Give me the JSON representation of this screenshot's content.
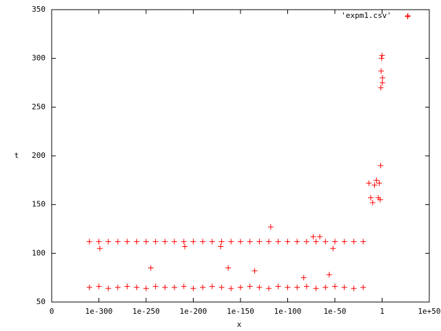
{
  "chart_data": {
    "type": "scatter",
    "xlabel": "x",
    "ylabel": "t",
    "xscale": "log",
    "xlim": [
      0,
      1e+50
    ],
    "xticks": [
      {
        "value": 0,
        "label": "0"
      },
      {
        "value": 1e-300,
        "label": "1e-300"
      },
      {
        "value": 1e-250,
        "label": "1e-250"
      },
      {
        "value": 1e-200,
        "label": "1e-200"
      },
      {
        "value": 1e-150,
        "label": "1e-150"
      },
      {
        "value": 1e-100,
        "label": "1e-100"
      },
      {
        "value": 1e-50,
        "label": "1e-50"
      },
      1,
      {
        "value": 1e+50,
        "label": "1e+50"
      }
    ],
    "ylim": [
      50,
      350
    ],
    "yticks": [
      50,
      100,
      150,
      200,
      250,
      300,
      350
    ],
    "legend_position": "top-right",
    "series": [
      {
        "name": "'expm1.csv'",
        "color": "#ff0000",
        "x": [
          1e-310,
          1e-300,
          1e-290,
          1e-280,
          1e-270,
          1e-260,
          1e-250,
          1e-240,
          1e-230,
          1e-220,
          1e-210,
          1e-200,
          1e-190,
          1e-180,
          1e-170,
          1e-160,
          1e-150,
          1e-140,
          1e-130,
          1e-120,
          1e-110,
          1e-100,
          1e-90,
          1e-80,
          1e-70,
          1e-60,
          1e-50,
          1e-40,
          1e-30,
          1e-20,
          1e-310,
          1e-300,
          1e-290,
          1e-280,
          1e-270,
          1e-260,
          1e-250,
          1e-240,
          1e-230,
          1e-220,
          1e-210,
          1e-200,
          1e-190,
          1e-180,
          1e-170,
          1e-160,
          1e-150,
          1e-140,
          1e-130,
          1e-120,
          1e-110,
          1e-100,
          1e-90,
          1e-80,
          1e-70,
          1e-60,
          1e-50,
          1e-40,
          1e-30,
          1e-20,
          1e-299,
          1e-245,
          1e-209,
          1e-171,
          1e-163,
          1e-135,
          1e-118,
          1e-83,
          1e-73,
          1e-66,
          1e-56,
          1e-52,
          1e-14,
          1e-12,
          1e-10,
          1e-08,
          1e-06,
          0.0001,
          0.001,
          0.01,
          0.03,
          0.05,
          0.1,
          0.3,
          1,
          2,
          3,
          1e+27
        ],
        "values": [
          65,
          66,
          64,
          65,
          66,
          65,
          64,
          66,
          65,
          65,
          66,
          64,
          65,
          66,
          65,
          64,
          65,
          66,
          65,
          64,
          66,
          65,
          65,
          66,
          64,
          65,
          66,
          65,
          64,
          65,
          112,
          112,
          112,
          112,
          112,
          112,
          112,
          112,
          112,
          112,
          112,
          112,
          112,
          112,
          112,
          112,
          112,
          112,
          112,
          112,
          112,
          112,
          112,
          112,
          112,
          112,
          112,
          112,
          112,
          112,
          105,
          85,
          107,
          107,
          85,
          82,
          127,
          75,
          117,
          117,
          78,
          105,
          172,
          157,
          152,
          170,
          175,
          157,
          172,
          155,
          190,
          270,
          287,
          300,
          303,
          275,
          280,
          343
        ]
      }
    ]
  }
}
